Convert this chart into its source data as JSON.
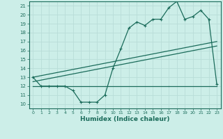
{
  "title": "",
  "xlabel": "Humidex (Indice chaleur)",
  "bg_color": "#cceee8",
  "line_color": "#1a6b5a",
  "grid_color": "#b8ddd8",
  "plot_bg": "#cceee8",
  "xlim": [
    -0.5,
    23.5
  ],
  "ylim": [
    9.5,
    21.5
  ],
  "yticks": [
    10,
    11,
    12,
    13,
    14,
    15,
    16,
    17,
    18,
    19,
    20,
    21
  ],
  "xticks": [
    0,
    1,
    2,
    3,
    4,
    5,
    6,
    7,
    8,
    9,
    10,
    11,
    12,
    13,
    14,
    15,
    16,
    17,
    18,
    19,
    20,
    21,
    22,
    23
  ],
  "main_curve_x": [
    0,
    1,
    2,
    3,
    4,
    5,
    6,
    7,
    8,
    9,
    10,
    11,
    12,
    13,
    14,
    15,
    16,
    17,
    18,
    19,
    20,
    21,
    22,
    23
  ],
  "main_curve_y": [
    13,
    12,
    12,
    12,
    12,
    11.5,
    10.2,
    10.2,
    10.2,
    11,
    14,
    16.2,
    18.5,
    19.2,
    18.8,
    19.5,
    19.5,
    20.8,
    21.5,
    19.5,
    19.8,
    20.5,
    19.5,
    12.2
  ],
  "upper_line_x": [
    0,
    23
  ],
  "upper_line_y": [
    13,
    17
  ],
  "middle_line_x": [
    0,
    23
  ],
  "middle_line_y": [
    12.5,
    16.5
  ],
  "lower_line_x": [
    0,
    17
  ],
  "lower_line_y": [
    12,
    12
  ],
  "lower_line2_x": [
    17,
    23
  ],
  "lower_line2_y": [
    12,
    12
  ]
}
